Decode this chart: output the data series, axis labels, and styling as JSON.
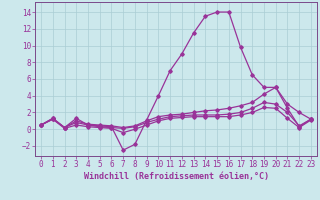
{
  "xlabel": "Windchill (Refroidissement éolien,°C)",
  "background_color": "#cce8ec",
  "grid_color": "#aacdd4",
  "line_color": "#993399",
  "spine_color": "#7a4a8a",
  "xlim": [
    -0.5,
    23.5
  ],
  "ylim": [
    -3.2,
    15.2
  ],
  "yticks": [
    -2,
    0,
    2,
    4,
    6,
    8,
    10,
    12,
    14
  ],
  "xticks": [
    0,
    1,
    2,
    3,
    4,
    5,
    6,
    7,
    8,
    9,
    10,
    11,
    12,
    13,
    14,
    15,
    16,
    17,
    18,
    19,
    20,
    21,
    22,
    23
  ],
  "line1_y": [
    0.5,
    1.3,
    0.2,
    1.3,
    0.5,
    0.4,
    0.3,
    -2.5,
    -1.8,
    1.1,
    4.0,
    7.0,
    9.0,
    11.5,
    13.5,
    14.0,
    14.0,
    9.8,
    6.5,
    5.0,
    5.0,
    2.5,
    0.3,
    1.2
  ],
  "line2_y": [
    0.5,
    1.3,
    0.2,
    1.0,
    0.6,
    0.5,
    0.4,
    0.2,
    0.4,
    1.0,
    1.5,
    1.7,
    1.8,
    2.0,
    2.2,
    2.3,
    2.5,
    2.8,
    3.2,
    4.2,
    5.0,
    3.0,
    2.0,
    1.2
  ],
  "line3_y": [
    0.5,
    1.2,
    0.2,
    0.8,
    0.5,
    0.3,
    0.2,
    0.1,
    0.3,
    0.8,
    1.2,
    1.5,
    1.6,
    1.7,
    1.7,
    1.7,
    1.8,
    2.0,
    2.5,
    3.2,
    3.0,
    2.0,
    0.4,
    1.2
  ],
  "line4_y": [
    0.5,
    1.2,
    0.1,
    0.5,
    0.3,
    0.2,
    0.1,
    -0.4,
    0.0,
    0.5,
    1.0,
    1.3,
    1.4,
    1.5,
    1.5,
    1.5,
    1.5,
    1.7,
    2.0,
    2.6,
    2.5,
    1.3,
    0.2,
    1.1
  ]
}
